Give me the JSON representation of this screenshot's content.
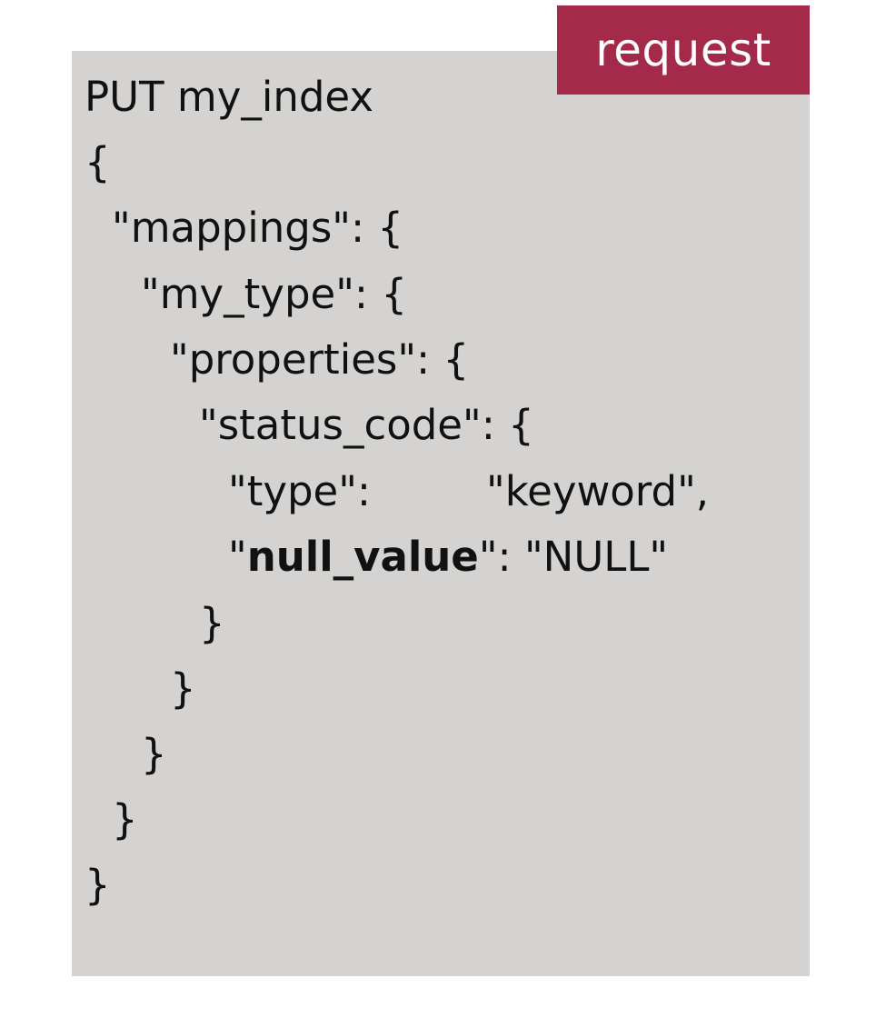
{
  "badge": {
    "label": "request"
  },
  "code": {
    "l1": "PUT my_index",
    "l2": "{",
    "l3": "\"mappings\": {",
    "l4": "\"my_type\": {",
    "l5": "\"properties\": {",
    "l6": "\"status_code\": {",
    "l7_key": "\"type\":",
    "l7_value": "\"keyword\",",
    "l8_quote_open": "\"",
    "l8_key": "null_value",
    "l8_rest": "\": \"NULL\"",
    "l9": "}",
    "l10": "}",
    "l11": "}",
    "l12": "}",
    "l13": "}"
  },
  "colors": {
    "panel": "#d4d3d1",
    "badge": "#a42a4a",
    "text": "#111111"
  }
}
